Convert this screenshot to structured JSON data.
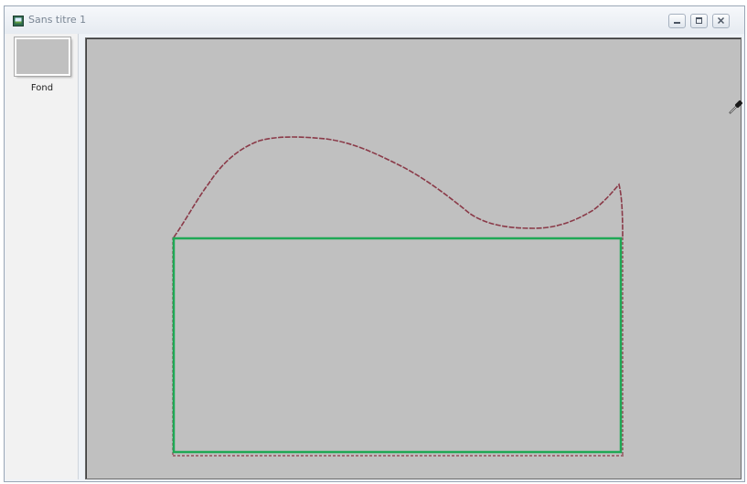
{
  "window": {
    "title": "Sans titre 1"
  },
  "layers": [
    {
      "name": "Fond"
    }
  ],
  "colors": {
    "canvas_background": "#c0c0c0",
    "curve_stroke": "#8a3a48",
    "rectangle_stroke": "#1fa855"
  },
  "icons": {
    "cursor": "eyedropper-icon"
  }
}
